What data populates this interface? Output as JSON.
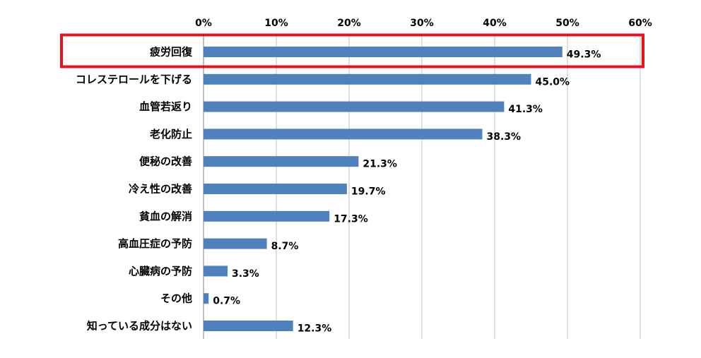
{
  "chart_data": {
    "type": "bar",
    "orientation": "horizontal",
    "title": "",
    "xlabel": "",
    "ylabel": "",
    "xlim": [
      0,
      60
    ],
    "x_ticks": [
      0,
      10,
      20,
      30,
      40,
      50,
      60
    ],
    "x_tick_labels": [
      "0%",
      "10%",
      "20%",
      "30%",
      "40%",
      "50%",
      "60%"
    ],
    "x_axis_position": "top",
    "grid": true,
    "legend": "none",
    "categories": [
      "疲労回復",
      "コレステロールを下げる",
      "血管若返り",
      "老化防止",
      "便秘の改善",
      "冷え性の改善",
      "貧血の解消",
      "高血圧症の予防",
      "心臓病の予防",
      "その他",
      "知っている成分はない"
    ],
    "values": [
      49.3,
      45.0,
      41.3,
      38.3,
      21.3,
      19.7,
      17.3,
      8.7,
      3.3,
      0.7,
      12.3
    ],
    "value_labels": [
      "49.3%",
      "45.0%",
      "41.3%",
      "38.3%",
      "21.3%",
      "19.7%",
      "17.3%",
      "8.7%",
      "3.3%",
      "0.7%",
      "12.3%"
    ],
    "highlighted_category": "疲労回復",
    "colors": {
      "bar": "#4f81bd",
      "highlight_box": "#e8141b",
      "grid": "#bfbfbf"
    }
  }
}
